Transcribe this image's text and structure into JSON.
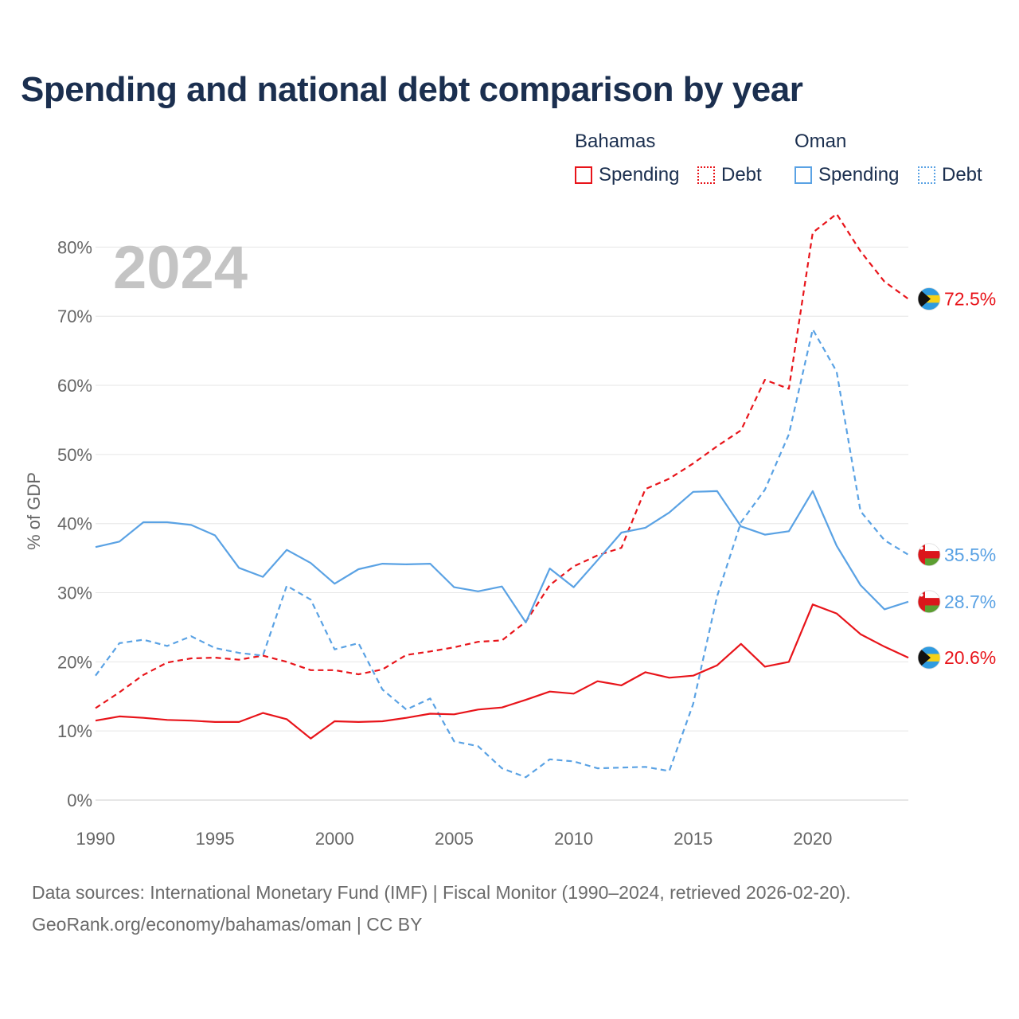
{
  "title": "Spending and national debt comparison by year",
  "legend": {
    "groups": [
      {
        "name": "Bahamas",
        "color": "#e8141a",
        "items": [
          {
            "label": "Spending",
            "style": "solid"
          },
          {
            "label": "Debt",
            "style": "dotted"
          }
        ]
      },
      {
        "name": "Oman",
        "color": "#5aa2e4",
        "items": [
          {
            "label": "Spending",
            "style": "solid"
          },
          {
            "label": "Debt",
            "style": "dotted"
          }
        ]
      }
    ]
  },
  "chart_data": {
    "type": "line",
    "year_watermark": "2024",
    "ylabel": "% of GDP",
    "ylim": [
      0,
      85
    ],
    "xlim": [
      1990,
      2024
    ],
    "y_ticks": [
      0,
      10,
      20,
      30,
      40,
      50,
      60,
      70,
      80
    ],
    "y_tick_labels": [
      "0%",
      "10%",
      "20%",
      "30%",
      "40%",
      "50%",
      "60%",
      "70%",
      "80%"
    ],
    "x_ticks": [
      1990,
      1995,
      2000,
      2005,
      2010,
      2015,
      2020
    ],
    "x_tick_labels": [
      "1990",
      "1995",
      "2000",
      "2005",
      "2010",
      "2015",
      "2020"
    ],
    "x": [
      1990,
      1991,
      1992,
      1993,
      1994,
      1995,
      1996,
      1997,
      1998,
      1999,
      2000,
      2001,
      2002,
      2003,
      2004,
      2005,
      2006,
      2007,
      2008,
      2009,
      2010,
      2011,
      2012,
      2013,
      2014,
      2015,
      2016,
      2017,
      2018,
      2019,
      2020,
      2021,
      2022,
      2023,
      2024
    ],
    "series": [
      {
        "name": "Bahamas Debt",
        "color": "#e8141a",
        "dash": true,
        "flag": "bahamas",
        "end_label": "72.5%",
        "values": [
          13.3,
          15.6,
          18.1,
          19.9,
          20.5,
          20.6,
          20.3,
          20.9,
          20.0,
          18.8,
          18.8,
          18.2,
          18.9,
          21.0,
          21.5,
          22.1,
          22.9,
          23.1,
          25.8,
          31.1,
          33.8,
          35.4,
          36.5,
          45.0,
          46.5,
          48.7,
          51.2,
          53.5,
          60.8,
          59.5,
          82.1,
          84.8,
          79.4,
          75.0,
          72.5
        ]
      },
      {
        "name": "Oman Debt",
        "color": "#5aa2e4",
        "dash": true,
        "flag": "oman",
        "end_label": "35.5%",
        "values": [
          18.0,
          22.7,
          23.2,
          22.3,
          23.7,
          22.0,
          21.3,
          20.9,
          31.0,
          29.0,
          21.8,
          22.7,
          16.0,
          13.1,
          14.7,
          8.5,
          7.8,
          4.6,
          3.3,
          5.9,
          5.6,
          4.6,
          4.7,
          4.8,
          4.2,
          13.9,
          29.5,
          40.2,
          44.9,
          52.9,
          68.1,
          62.0,
          41.8,
          37.6,
          35.5
        ]
      },
      {
        "name": "Oman Spending",
        "color": "#5aa2e4",
        "dash": false,
        "flag": "oman",
        "end_label": "28.7%",
        "values": [
          36.6,
          37.4,
          40.2,
          40.2,
          39.8,
          38.3,
          33.6,
          32.3,
          36.2,
          34.3,
          31.3,
          33.4,
          34.2,
          34.1,
          34.2,
          30.8,
          30.2,
          30.9,
          25.7,
          33.5,
          30.8,
          34.7,
          38.7,
          39.4,
          41.6,
          44.6,
          44.7,
          39.6,
          38.4,
          38.9,
          44.7,
          36.8,
          31.1,
          27.6,
          28.7
        ]
      },
      {
        "name": "Bahamas Spending",
        "color": "#e8141a",
        "dash": false,
        "flag": "bahamas",
        "end_label": "20.6%",
        "values": [
          11.5,
          12.1,
          11.9,
          11.6,
          11.5,
          11.3,
          11.3,
          12.6,
          11.7,
          8.9,
          11.4,
          11.3,
          11.4,
          11.9,
          12.5,
          12.4,
          13.1,
          13.4,
          14.5,
          15.7,
          15.4,
          17.2,
          16.6,
          18.5,
          17.7,
          18.0,
          19.5,
          22.6,
          19.3,
          20.0,
          28.3,
          27.0,
          24.0,
          22.2,
          20.6
        ]
      }
    ]
  },
  "footer": {
    "line1": "Data sources: International Monetary Fund (IMF) | Fiscal Monitor (1990–2024, retrieved 2026-02-20).",
    "line2": "GeoRank.org/economy/bahamas/oman | CC BY"
  }
}
